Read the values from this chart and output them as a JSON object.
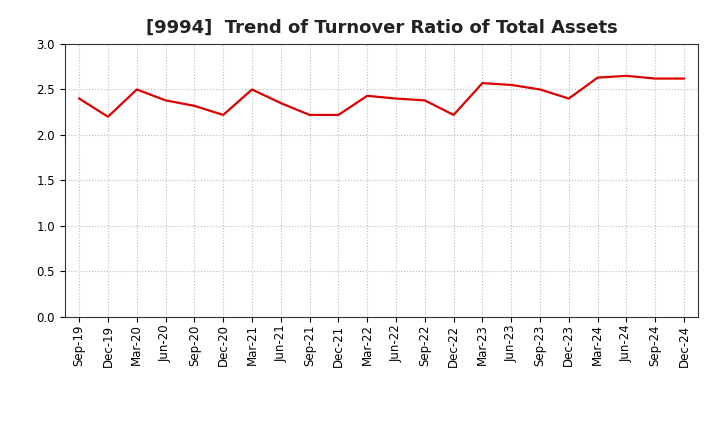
{
  "title": "[9994]  Trend of Turnover Ratio of Total Assets",
  "x_labels": [
    "Sep-19",
    "Dec-19",
    "Mar-20",
    "Jun-20",
    "Sep-20",
    "Dec-20",
    "Mar-21",
    "Jun-21",
    "Sep-21",
    "Dec-21",
    "Mar-22",
    "Jun-22",
    "Sep-22",
    "Dec-22",
    "Mar-23",
    "Jun-23",
    "Sep-23",
    "Dec-23",
    "Mar-24",
    "Jun-24",
    "Sep-24",
    "Dec-24"
  ],
  "values": [
    2.4,
    2.2,
    2.5,
    2.38,
    2.32,
    2.22,
    2.5,
    2.35,
    2.22,
    2.22,
    2.43,
    2.4,
    2.38,
    2.22,
    2.57,
    2.55,
    2.5,
    2.4,
    2.63,
    2.65,
    2.62,
    2.62
  ],
  "line_color": "#dd0000",
  "line_width": 1.6,
  "ylim": [
    0.0,
    3.0
  ],
  "yticks": [
    0.0,
    0.5,
    1.0,
    1.5,
    2.0,
    2.5,
    3.0
  ],
  "background_color": "#ffffff",
  "grid_color": "#bbbbbb",
  "title_fontsize": 13,
  "tick_fontsize": 8.5
}
